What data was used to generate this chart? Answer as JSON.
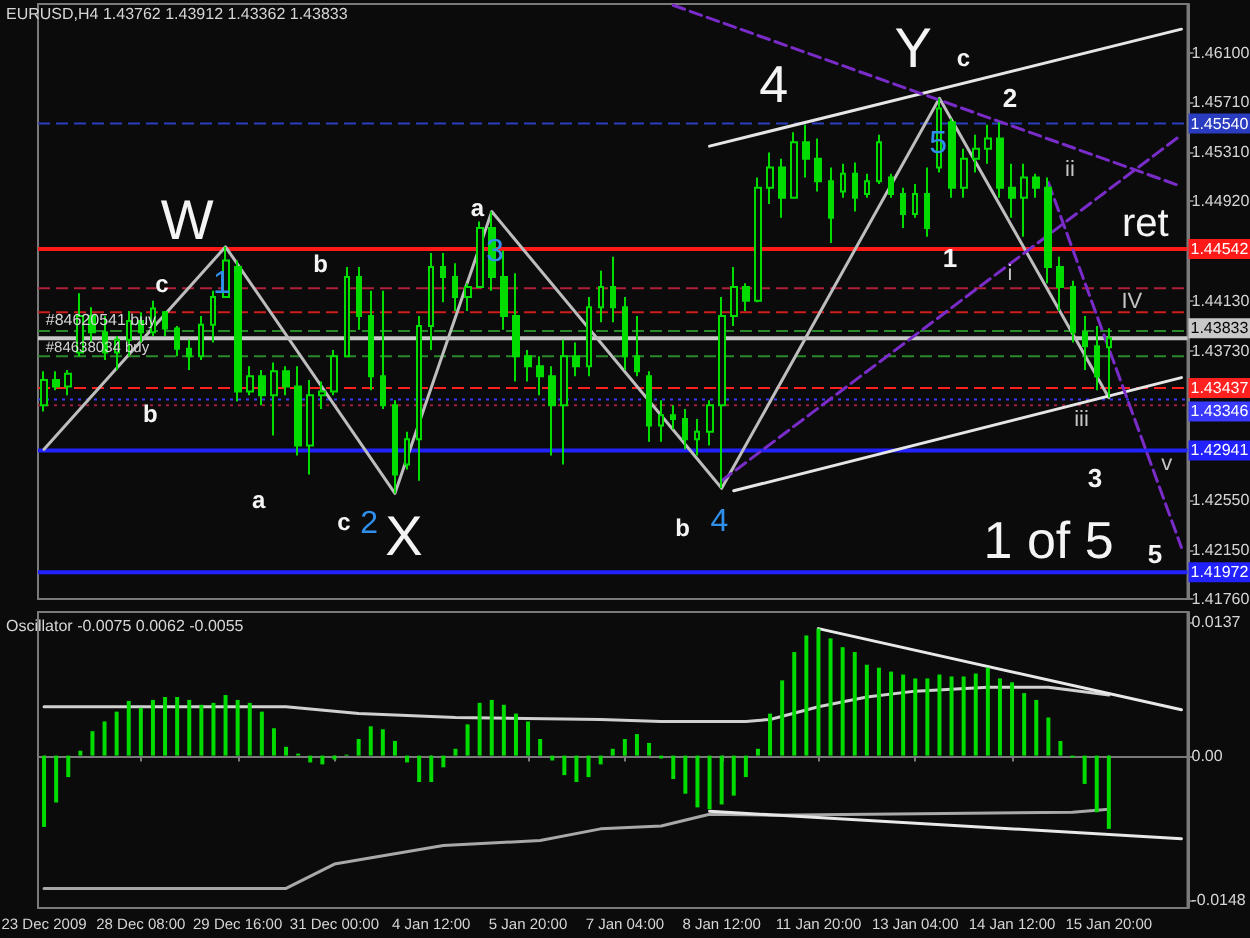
{
  "chart_data": [
    {
      "type": "candlestick",
      "title": "EURUSD,H4 1.43762 1.43912 1.43362 1.43833",
      "categories": [
        null,
        null,
        null,
        null,
        null,
        null,
        null,
        null,
        null,
        null,
        null,
        null,
        null,
        null,
        null,
        null,
        null,
        null,
        null,
        null,
        null,
        null,
        null,
        null,
        null,
        null,
        null,
        null,
        null,
        null,
        null,
        null,
        null,
        null,
        null,
        null,
        null,
        null,
        null,
        null,
        null,
        null,
        null,
        null,
        null,
        null,
        null,
        null,
        null,
        null,
        null,
        null,
        null,
        null,
        null,
        null,
        null,
        null,
        null,
        null,
        null,
        null,
        null,
        null,
        null,
        null,
        null,
        null,
        null,
        null,
        null,
        null,
        null,
        null,
        null,
        null,
        null,
        null,
        null,
        null,
        null,
        null,
        null,
        null,
        null,
        null,
        null,
        null,
        null,
        null,
        null,
        null,
        null,
        null,
        null
      ],
      "ohlc": [
        [
          1.433,
          1.4357,
          1.4325,
          1.435
        ],
        [
          1.435,
          1.4357,
          1.4342,
          1.4345
        ],
        [
          1.4345,
          1.4358,
          1.4338,
          1.4355
        ],
        [
          1.4372,
          1.4419,
          1.4369,
          1.4401
        ],
        [
          1.4401,
          1.4408,
          1.438,
          1.4388
        ],
        [
          1.4388,
          1.4401,
          1.4366,
          1.4372
        ],
        [
          1.4372,
          1.4385,
          1.4358,
          1.4382
        ],
        [
          1.4382,
          1.4405,
          1.4369,
          1.4397
        ],
        [
          1.4397,
          1.4404,
          1.438,
          1.4388
        ],
        [
          1.4388,
          1.4413,
          1.4385,
          1.4407
        ],
        [
          1.4404,
          1.4405,
          1.4385,
          1.4391
        ],
        [
          1.4391,
          1.4393,
          1.4369,
          1.4375
        ],
        [
          1.4375,
          1.4382,
          1.4358,
          1.4369
        ],
        [
          1.4369,
          1.4401,
          1.4366,
          1.4394
        ],
        [
          1.4394,
          1.4421,
          1.438,
          1.4416
        ],
        [
          1.4416,
          1.4456,
          1.4416,
          1.4445
        ],
        [
          1.444,
          1.4445,
          1.4333,
          1.4341
        ],
        [
          1.4341,
          1.4361,
          1.4338,
          1.4353
        ],
        [
          1.4353,
          1.4358,
          1.433,
          1.4338
        ],
        [
          1.4338,
          1.4364,
          1.4306,
          1.4357
        ],
        [
          1.4357,
          1.4361,
          1.4338,
          1.4345
        ],
        [
          1.4345,
          1.4361,
          1.429,
          1.4298
        ],
        [
          1.4298,
          1.435,
          1.4275,
          1.4338
        ],
        [
          1.4338,
          1.4349,
          1.4327,
          1.4341
        ],
        [
          1.4341,
          1.4374,
          1.4338,
          1.4369
        ],
        [
          1.4369,
          1.444,
          1.4369,
          1.4432
        ],
        [
          1.4432,
          1.444,
          1.439,
          1.4401
        ],
        [
          1.4401,
          1.4421,
          1.4342,
          1.4353
        ],
        [
          1.4353,
          1.4421,
          1.4327,
          1.433
        ],
        [
          1.433,
          1.4334,
          1.426,
          1.4275
        ],
        [
          1.4283,
          1.4309,
          1.4279,
          1.4303
        ],
        [
          1.4303,
          1.4401,
          1.427,
          1.4393
        ],
        [
          1.4393,
          1.4451,
          1.4374,
          1.444
        ],
        [
          1.444,
          1.4451,
          1.4412,
          1.4432
        ],
        [
          1.4432,
          1.4443,
          1.4405,
          1.4416
        ],
        [
          1.4416,
          1.4427,
          1.4405,
          1.4424
        ],
        [
          1.4424,
          1.4476,
          1.4424,
          1.4471
        ],
        [
          1.4471,
          1.4484,
          1.4421,
          1.4432
        ],
        [
          1.4432,
          1.4453,
          1.439,
          1.4401
        ],
        [
          1.4401,
          1.4435,
          1.4349,
          1.4369
        ],
        [
          1.4369,
          1.4374,
          1.4349,
          1.4361
        ],
        [
          1.4361,
          1.4369,
          1.4338,
          1.4353
        ],
        [
          1.4353,
          1.4361,
          1.429,
          1.433
        ],
        [
          1.433,
          1.4382,
          1.4283,
          1.4369
        ],
        [
          1.4369,
          1.438,
          1.4353,
          1.4361
        ],
        [
          1.4361,
          1.4416,
          1.4353,
          1.4408
        ],
        [
          1.4408,
          1.4437,
          1.4396,
          1.4424
        ],
        [
          1.4424,
          1.4448,
          1.4396,
          1.4408
        ],
        [
          1.4408,
          1.4416,
          1.4358,
          1.4369
        ],
        [
          1.4369,
          1.4401,
          1.4353,
          1.4357
        ],
        [
          1.4353,
          1.4357,
          1.4301,
          1.4314
        ],
        [
          1.4314,
          1.4334,
          1.4301,
          1.4322
        ],
        [
          1.4322,
          1.433,
          1.4311,
          1.4319
        ],
        [
          1.4319,
          1.4327,
          1.4295,
          1.4303
        ],
        [
          1.4303,
          1.4319,
          1.429,
          1.4309
        ],
        [
          1.4309,
          1.4334,
          1.4298,
          1.433
        ],
        [
          1.433,
          1.4416,
          1.4264,
          1.4401
        ],
        [
          1.4401,
          1.444,
          1.4393,
          1.4424
        ],
        [
          1.4424,
          1.4427,
          1.4405,
          1.4413
        ],
        [
          1.4413,
          1.4511,
          1.4412,
          1.4503
        ],
        [
          1.4503,
          1.4531,
          1.449,
          1.4519
        ],
        [
          1.4519,
          1.4526,
          1.4479,
          1.4495
        ],
        [
          1.4495,
          1.4547,
          1.4495,
          1.4539
        ],
        [
          1.4539,
          1.4553,
          1.4511,
          1.4526
        ],
        [
          1.4526,
          1.4542,
          1.45,
          1.4508
        ],
        [
          1.4508,
          1.4519,
          1.4459,
          1.4479
        ],
        [
          1.45,
          1.4522,
          1.4495,
          1.4514
        ],
        [
          1.4514,
          1.4523,
          1.4484,
          1.4495
        ],
        [
          1.4498,
          1.4514,
          1.4495,
          1.4508
        ],
        [
          1.4508,
          1.4545,
          1.4506,
          1.4539
        ],
        [
          1.4511,
          1.4514,
          1.4495,
          1.4498
        ],
        [
          1.4498,
          1.4503,
          1.4471,
          1.4482
        ],
        [
          1.4482,
          1.4506,
          1.4479,
          1.4498
        ],
        [
          1.4498,
          1.4519,
          1.4464,
          1.4471
        ],
        [
          1.4519,
          1.4574,
          1.4515,
          1.4566
        ],
        [
          1.4555,
          1.4558,
          1.4495,
          1.4503
        ],
        [
          1.4503,
          1.4534,
          1.4495,
          1.4526
        ],
        [
          1.4526,
          1.4545,
          1.4515,
          1.4534
        ],
        [
          1.4534,
          1.4553,
          1.4522,
          1.4542
        ],
        [
          1.4542,
          1.4555,
          1.4495,
          1.4503
        ],
        [
          1.4503,
          1.4522,
          1.4479,
          1.4495
        ],
        [
          1.4495,
          1.4522,
          1.4464,
          1.4511
        ],
        [
          1.4511,
          1.4514,
          1.4495,
          1.4503
        ],
        [
          1.4503,
          1.4511,
          1.4427,
          1.444
        ],
        [
          1.444,
          1.4448,
          1.4405,
          1.4424
        ],
        [
          1.4424,
          1.4429,
          1.438,
          1.4388
        ],
        [
          1.4388,
          1.4401,
          1.4358,
          1.4377
        ],
        [
          1.4377,
          1.4393,
          1.4342,
          1.4353
        ],
        [
          1.43762,
          1.43912,
          1.43362,
          1.43833
        ],
        null,
        null,
        null,
        null,
        null,
        null
      ],
      "color": "#00dc00",
      "series": [
        {
          "type": "line",
          "color": "#bdbdbd",
          "values": [
            1.4295,
            null,
            null,
            null,
            null,
            null,
            null,
            null,
            null,
            null,
            null,
            null,
            null,
            null,
            null,
            1.4456,
            null,
            null,
            null,
            null,
            null,
            null,
            null,
            null,
            null,
            null,
            null,
            null,
            null,
            1.426,
            null,
            null,
            null,
            null,
            null,
            null,
            null,
            1.4484,
            null,
            null,
            null,
            null,
            null,
            null,
            null,
            null,
            null,
            null,
            null,
            null,
            null,
            null,
            null,
            null,
            null,
            null,
            1.4264,
            null,
            null,
            null,
            null,
            null,
            null,
            null,
            null,
            null,
            null,
            null,
            null,
            null,
            null,
            null,
            null,
            null,
            1.4574,
            null,
            null,
            null,
            null,
            null,
            null,
            null,
            null,
            null,
            null,
            null,
            null,
            null,
            1.4336,
            null,
            null,
            null,
            null,
            null,
            null
          ]
        },
        {
          "type": "line",
          "color": "#e6e6e6",
          "values": [
            null,
            null,
            null,
            null,
            null,
            null,
            null,
            null,
            null,
            null,
            null,
            null,
            null,
            null,
            null,
            null,
            null,
            null,
            null,
            null,
            null,
            null,
            null,
            null,
            null,
            null,
            null,
            null,
            null,
            null,
            null,
            null,
            null,
            null,
            null,
            null,
            null,
            null,
            null,
            null,
            null,
            null,
            null,
            null,
            null,
            null,
            null,
            null,
            null,
            null,
            null,
            null,
            null,
            null,
            null,
            1.4536,
            null,
            null,
            null,
            null,
            null,
            null,
            null,
            null,
            null,
            null,
            null,
            null,
            null,
            null,
            null,
            null,
            null,
            null,
            null,
            null,
            null,
            null,
            null,
            null,
            null,
            null,
            null,
            null,
            null,
            null,
            null,
            null,
            null,
            null,
            null,
            null,
            null,
            null,
            1.4629
          ]
        },
        {
          "type": "line",
          "color": "#e6e6e6",
          "values": [
            null,
            null,
            null,
            null,
            null,
            null,
            null,
            null,
            null,
            null,
            null,
            null,
            null,
            null,
            null,
            null,
            null,
            null,
            null,
            null,
            null,
            null,
            null,
            null,
            null,
            null,
            null,
            null,
            null,
            null,
            null,
            null,
            null,
            null,
            null,
            null,
            null,
            null,
            null,
            null,
            null,
            null,
            null,
            null,
            null,
            null,
            null,
            null,
            null,
            null,
            null,
            null,
            null,
            null,
            null,
            null,
            null,
            1.4262,
            null,
            null,
            null,
            null,
            null,
            null,
            null,
            null,
            null,
            null,
            null,
            null,
            null,
            null,
            null,
            null,
            null,
            null,
            null,
            null,
            null,
            null,
            null,
            null,
            null,
            null,
            null,
            null,
            null,
            null,
            null,
            null,
            null,
            null,
            null,
            null,
            1.4352
          ]
        },
        {
          "type": "line",
          "color": "#7a2cc8",
          "line_style": "dashed",
          "values": [
            null,
            null,
            null,
            null,
            null,
            null,
            null,
            null,
            null,
            null,
            null,
            null,
            null,
            null,
            null,
            null,
            null,
            null,
            null,
            null,
            null,
            null,
            null,
            null,
            null,
            null,
            null,
            null,
            null,
            null,
            null,
            null,
            null,
            null,
            null,
            null,
            null,
            null,
            null,
            null,
            null,
            null,
            null,
            null,
            null,
            null,
            null,
            null,
            null,
            null,
            null,
            null,
            1.4648,
            null,
            null,
            null,
            null,
            null,
            null,
            null,
            null,
            null,
            null,
            null,
            null,
            null,
            null,
            null,
            null,
            null,
            null,
            null,
            null,
            null,
            null,
            null,
            null,
            null,
            null,
            null,
            null,
            null,
            null,
            null,
            null,
            null,
            null,
            null,
            null,
            null,
            null,
            null,
            null,
            null,
            1.4504
          ]
        },
        {
          "type": "line",
          "color": "#7a2cc8",
          "line_style": "dashed",
          "values": [
            null,
            null,
            null,
            null,
            null,
            null,
            null,
            null,
            null,
            null,
            null,
            null,
            null,
            null,
            null,
            null,
            null,
            null,
            null,
            null,
            null,
            null,
            null,
            null,
            null,
            null,
            null,
            null,
            null,
            null,
            null,
            null,
            null,
            null,
            null,
            null,
            null,
            null,
            null,
            null,
            null,
            null,
            null,
            null,
            null,
            null,
            null,
            null,
            null,
            null,
            null,
            null,
            null,
            null,
            null,
            null,
            null,
            null,
            null,
            null,
            null,
            null,
            null,
            null,
            null,
            null,
            null,
            null,
            null,
            null,
            null,
            null,
            null,
            null,
            null,
            null,
            null,
            null,
            null,
            null,
            null,
            null,
            null,
            1.4507,
            null,
            null,
            null,
            null,
            null,
            null,
            null,
            null,
            null,
            null,
            1.4217
          ]
        },
        {
          "type": "line",
          "color": "#7a2cc8",
          "line_style": "dashed",
          "values": [
            null,
            null,
            null,
            null,
            null,
            null,
            null,
            null,
            null,
            null,
            null,
            null,
            null,
            null,
            null,
            null,
            null,
            null,
            null,
            null,
            null,
            null,
            null,
            null,
            null,
            null,
            null,
            null,
            null,
            null,
            null,
            null,
            null,
            null,
            null,
            null,
            null,
            null,
            null,
            null,
            null,
            null,
            null,
            null,
            null,
            null,
            null,
            null,
            null,
            null,
            null,
            null,
            null,
            null,
            null,
            null,
            1.427,
            null,
            null,
            null,
            null,
            null,
            null,
            null,
            null,
            null,
            null,
            null,
            null,
            null,
            null,
            null,
            null,
            null,
            null,
            null,
            null,
            null,
            null,
            null,
            null,
            null,
            null,
            null,
            null,
            null,
            null,
            null,
            null,
            null,
            null,
            null,
            null,
            null,
            1.4545
          ]
        }
      ],
      "ylim": [
        1.4176,
        1.4649
      ],
      "yticks": [
        {
          "value": 1.4176,
          "label": "1.41760"
        },
        {
          "value": 1.4215,
          "label": "1.42150"
        },
        {
          "value": 1.4255,
          "label": "1.42550"
        },
        {
          "value": 1.4373,
          "label": "1.43730"
        },
        {
          "value": 1.4413,
          "label": "1.44130"
        },
        {
          "value": 1.4492,
          "label": "1.44920"
        },
        {
          "value": 1.4531,
          "label": "1.45310"
        },
        {
          "value": 1.4571,
          "label": "1.45710"
        },
        {
          "value": 1.461,
          "label": "1.46100"
        }
      ],
      "tick_labels": "y",
      "ref_lines": [
        {
          "axis": "y",
          "value": 1.4554,
          "label": "1.45540",
          "color": "#2a3cc0",
          "line_style": "dashed"
        },
        {
          "axis": "y",
          "value": 1.44542,
          "label": "1.44542",
          "color": "#ff1a1a",
          "line_style": "solid"
        },
        {
          "axis": "y",
          "value": 1.4423,
          "color": "#b0203a",
          "line_style": "dashed"
        },
        {
          "axis": "y",
          "value": 1.4404,
          "color": "#d01c1c",
          "line_style": "dashed"
        },
        {
          "axis": "y",
          "value": 1.4389,
          "color": "#2a8a2a",
          "line_style": "dashed"
        },
        {
          "axis": "y",
          "value": 1.43833,
          "label": "1.43833",
          "color": "#c8c8c8",
          "line_style": "solid"
        },
        {
          "axis": "y",
          "value": 1.4369,
          "color": "#2a8a2a",
          "line_style": "dashed"
        },
        {
          "axis": "y",
          "value": 1.43437,
          "label": "1.43437",
          "color": "#ff2020",
          "line_style": "dashed"
        },
        {
          "axis": "y",
          "value": 1.43346,
          "label": "1.43346",
          "color": "#3a3aff",
          "line_style": "dotted"
        },
        {
          "axis": "y",
          "value": 1.433,
          "color": "#a01c3c",
          "line_style": "dotted"
        },
        {
          "axis": "y",
          "value": 1.42941,
          "label": "1.42941",
          "color": "#2222ff",
          "line_style": "solid"
        },
        {
          "axis": "y",
          "value": 1.41972,
          "label": "1.41972",
          "color": "#2222ff",
          "line_style": "solid"
        }
      ],
      "annotations": [
        "W",
        "X",
        "Y",
        "4",
        "ret",
        "1 of 5",
        "c",
        "b",
        "b",
        "a",
        "c",
        "a",
        "b",
        "c",
        "2",
        "1",
        "3",
        "5",
        "ii",
        "i",
        "IV",
        "iii",
        "v",
        "1",
        "2",
        "3",
        "4",
        "5",
        "#84620541 buy",
        "#84638034 buy"
      ]
    },
    {
      "type": "bar",
      "title": "Oscillator -0.0075 0.0062 -0.0055",
      "categories": [
        "23 Dec 2009",
        null,
        null,
        null,
        null,
        null,
        null,
        null,
        "28 Dec 08:00",
        null,
        null,
        null,
        null,
        null,
        null,
        null,
        "29 Dec 16:00",
        null,
        null,
        null,
        null,
        null,
        null,
        null,
        "31 Dec 00:00",
        null,
        null,
        null,
        null,
        null,
        null,
        null,
        "4 Jan 12:00",
        null,
        null,
        null,
        null,
        null,
        null,
        null,
        "5 Jan 20:00",
        null,
        null,
        null,
        null,
        null,
        null,
        null,
        "7 Jan 04:00",
        null,
        null,
        null,
        null,
        null,
        null,
        null,
        "8 Jan 12:00",
        null,
        null,
        null,
        null,
        null,
        null,
        null,
        "11 Jan 20:00",
        null,
        null,
        null,
        null,
        null,
        null,
        null,
        "13 Jan 04:00",
        null,
        null,
        null,
        null,
        null,
        null,
        null,
        "14 Jan 12:00",
        null,
        null,
        null,
        null,
        null,
        null,
        null,
        "15 Jan 20:00",
        null,
        null,
        null,
        null,
        null,
        null
      ],
      "series": [
        {
          "color": "#00dc00",
          "values": [
            -0.0073,
            -0.0048,
            -0.0022,
            0.0005,
            0.0025,
            0.0035,
            0.0045,
            0.0056,
            0.0049,
            0.0057,
            0.006,
            0.006,
            0.0057,
            0.0052,
            0.0054,
            0.0062,
            0.0057,
            0.0054,
            0.0045,
            0.0028,
            0.0009,
            0.0002,
            -0.0007,
            -0.0009,
            -0.0004,
            0.0001,
            0.0017,
            0.003,
            0.0027,
            0.0015,
            -0.0007,
            -0.0027,
            -0.0027,
            -0.0012,
            0.0007,
            0.0032,
            0.0054,
            0.0057,
            0.0052,
            0.0043,
            0.0035,
            0.0017,
            -0.0005,
            -0.002,
            -0.0027,
            -0.0022,
            -0.0009,
            0.0007,
            0.0017,
            0.0022,
            0.0013,
            -0.0003,
            -0.0024,
            -0.0039,
            -0.0053,
            -0.0055,
            -0.005,
            -0.0041,
            -0.0022,
            0.0007,
            0.0043,
            0.0077,
            0.0106,
            0.0123,
            0.013,
            0.012,
            0.0111,
            0.0106,
            0.0093,
            0.009,
            0.0086,
            0.0083,
            0.0079,
            0.0079,
            0.0083,
            0.0081,
            0.0081,
            0.0084,
            0.009,
            0.0079,
            0.0075,
            0.0064,
            0.0057,
            0.0039,
            0.0015,
            -0.0002,
            -0.0029,
            -0.0058,
            -0.0075,
            null,
            null,
            null,
            null,
            null,
            null
          ]
        },
        {
          "type": "line",
          "color": "#d0d0d0",
          "values": [
            0.005,
            null,
            null,
            null,
            null,
            null,
            null,
            null,
            null,
            null,
            null,
            null,
            null,
            null,
            null,
            null,
            null,
            null,
            null,
            null,
            0.005,
            null,
            null,
            null,
            null,
            null,
            0.0043,
            null,
            null,
            null,
            null,
            null,
            null,
            null,
            0.0039,
            null,
            null,
            null,
            null,
            null,
            null,
            null,
            null,
            null,
            null,
            null,
            0.0037,
            null,
            null,
            null,
            null,
            0.0035,
            null,
            null,
            null,
            null,
            null,
            null,
            0.0035,
            null,
            0.0037,
            null,
            null,
            null,
            0.005,
            null,
            null,
            null,
            0.006,
            null,
            null,
            null,
            0.0066,
            null,
            null,
            null,
            null,
            null,
            0.007,
            null,
            null,
            null,
            null,
            0.007,
            null,
            null,
            null,
            null,
            0.0062,
            null,
            null,
            null,
            null,
            null,
            null
          ]
        },
        {
          "type": "line",
          "color": "#a8a8a8",
          "values": [
            -0.0136,
            null,
            null,
            null,
            null,
            null,
            null,
            null,
            null,
            null,
            null,
            null,
            null,
            null,
            null,
            null,
            null,
            null,
            null,
            null,
            -0.0136,
            null,
            null,
            null,
            -0.0111,
            null,
            null,
            null,
            null,
            null,
            null,
            null,
            null,
            -0.0092,
            null,
            null,
            null,
            null,
            null,
            null,
            null,
            -0.0087,
            null,
            null,
            null,
            null,
            -0.0075,
            null,
            null,
            null,
            null,
            -0.0072,
            null,
            null,
            null,
            -0.006,
            null,
            null,
            null,
            null,
            -0.0061,
            null,
            null,
            null,
            null,
            null,
            null,
            null,
            null,
            null,
            null,
            null,
            null,
            null,
            null,
            null,
            null,
            null,
            null,
            null,
            null,
            null,
            null,
            null,
            null,
            -0.0058,
            null,
            null,
            -0.0055,
            null,
            null,
            null,
            null,
            null,
            null
          ]
        },
        {
          "type": "line",
          "color": "#e8e8e8",
          "values": [
            null,
            null,
            null,
            null,
            null,
            null,
            null,
            null,
            null,
            null,
            null,
            null,
            null,
            null,
            null,
            null,
            null,
            null,
            null,
            null,
            null,
            null,
            null,
            null,
            null,
            null,
            null,
            null,
            null,
            null,
            null,
            null,
            null,
            null,
            null,
            null,
            null,
            null,
            null,
            null,
            null,
            null,
            null,
            null,
            null,
            null,
            null,
            null,
            null,
            null,
            null,
            null,
            null,
            null,
            null,
            null,
            null,
            null,
            null,
            null,
            null,
            null,
            null,
            null,
            0.013,
            null,
            null,
            null,
            null,
            null,
            null,
            null,
            null,
            null,
            null,
            null,
            null,
            null,
            null,
            null,
            null,
            null,
            null,
            null,
            null,
            null,
            null,
            null,
            null,
            null,
            null,
            null,
            null,
            null,
            0.0047
          ]
        },
        {
          "type": "line",
          "color": "#e8e8e8",
          "values": [
            null,
            null,
            null,
            null,
            null,
            null,
            null,
            null,
            null,
            null,
            null,
            null,
            null,
            null,
            null,
            null,
            null,
            null,
            null,
            null,
            null,
            null,
            null,
            null,
            null,
            null,
            null,
            null,
            null,
            null,
            null,
            null,
            null,
            null,
            null,
            null,
            null,
            null,
            null,
            null,
            null,
            null,
            null,
            null,
            null,
            null,
            null,
            null,
            null,
            null,
            null,
            null,
            null,
            null,
            null,
            -0.0057,
            null,
            null,
            null,
            null,
            null,
            null,
            null,
            null,
            null,
            null,
            null,
            null,
            null,
            null,
            null,
            null,
            null,
            null,
            null,
            null,
            null,
            null,
            null,
            null,
            null,
            null,
            null,
            null,
            null,
            null,
            null,
            null,
            null,
            null,
            null,
            null,
            null,
            null,
            -0.0085
          ]
        }
      ],
      "ylim": [
        -0.0156,
        0.0147
      ],
      "yticks": [
        -0.0148,
        {
          "value": 0,
          "label": "0.00"
        },
        0.0137
      ]
    }
  ]
}
